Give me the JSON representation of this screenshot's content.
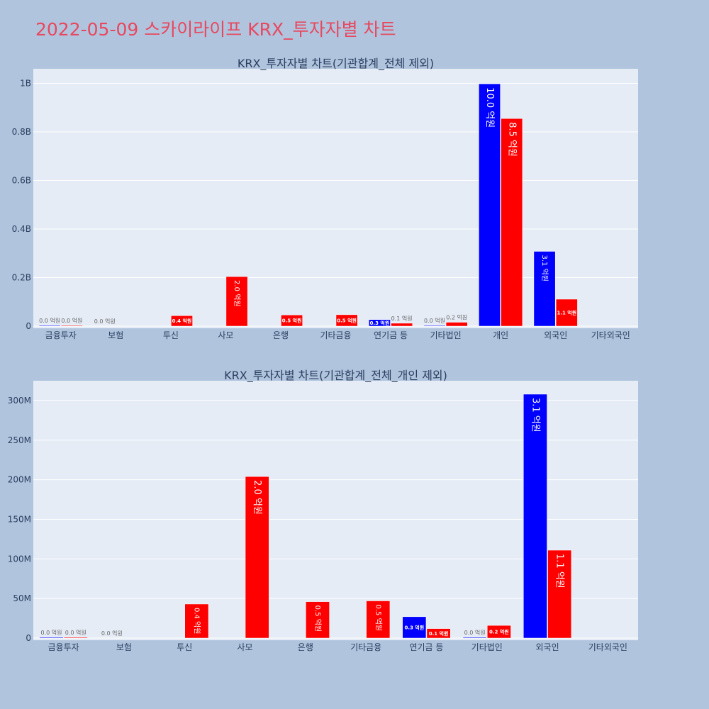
{
  "page_title": "2022-05-09 스카이라이프 KRX_투자자별 차트",
  "colors": {
    "title": "#e8485e",
    "buy": "#0000ff",
    "sell": "#ff0000",
    "plot_bg": "#e5ecf6",
    "page_bg": "#b0c4de"
  },
  "chart_data": [
    {
      "type": "bar",
      "title": "KRX_투자자별 차트(기관합계_전체 제외)",
      "categories": [
        "금융투자",
        "보험",
        "투신",
        "사모",
        "은행",
        "기타금융",
        "연기금 등",
        "기타법인",
        "개인",
        "외국인",
        "기타외국인"
      ],
      "ylim": [
        0,
        1060000000
      ],
      "yticks": [
        0,
        200000000,
        400000000,
        600000000,
        800000000,
        1000000000
      ],
      "ytick_labels": [
        "0",
        "0.2B",
        "0.4B",
        "0.6B",
        "0.8B",
        "1B"
      ],
      "grid": true,
      "series": [
        {
          "values": [
            1000000,
            0,
            0,
            0,
            0,
            0,
            27000000,
            1000000,
            998000000,
            308000000,
            0
          ],
          "labels": [
            "0.0 억원",
            "0.0 억원",
            "",
            "",
            "",
            "",
            "0.3 억원",
            "0.0 억원",
            "10.0 억원",
            "3.1 억원",
            ""
          ]
        },
        {
          "values": [
            1000000,
            0,
            43000000,
            204000000,
            46000000,
            47000000,
            12000000,
            16000000,
            855000000,
            111000000,
            0
          ],
          "labels": [
            "0.0 억원",
            "",
            "0.4 억원",
            "2.0 억원",
            "0.5 억원",
            "0.5 억원",
            "0.1 억원",
            "0.2 억원",
            "8.5 억원",
            "1.1 억원",
            ""
          ]
        }
      ]
    },
    {
      "type": "bar",
      "title": "KRX_투자자별 차트(기관합계_전체_개인 제외)",
      "categories": [
        "금융투자",
        "보험",
        "투신",
        "사모",
        "은행",
        "기타금융",
        "연기금 등",
        "기타법인",
        "외국인",
        "기타외국인"
      ],
      "ylim": [
        0,
        325000000
      ],
      "yticks": [
        0,
        50000000,
        100000000,
        150000000,
        200000000,
        250000000,
        300000000
      ],
      "ytick_labels": [
        "0",
        "50M",
        "100M",
        "150M",
        "200M",
        "250M",
        "300M"
      ],
      "grid": true,
      "series": [
        {
          "values": [
            1000000,
            0,
            0,
            0,
            0,
            0,
            27000000,
            1000000,
            308000000,
            0
          ],
          "labels": [
            "0.0 억원",
            "0.0 억원",
            "",
            "",
            "",
            "",
            "0.3 억원",
            "0.0 억원",
            "3.1 억원",
            ""
          ]
        },
        {
          "values": [
            1000000,
            0,
            43000000,
            204000000,
            46000000,
            47000000,
            12000000,
            16000000,
            111000000,
            0
          ],
          "labels": [
            "0.0 억원",
            "",
            "0.4 억원",
            "2.0 억원",
            "0.5 억원",
            "0.5 억원",
            "0.1 억원",
            "0.2 억원",
            "1.1 억원",
            ""
          ]
        }
      ]
    }
  ]
}
